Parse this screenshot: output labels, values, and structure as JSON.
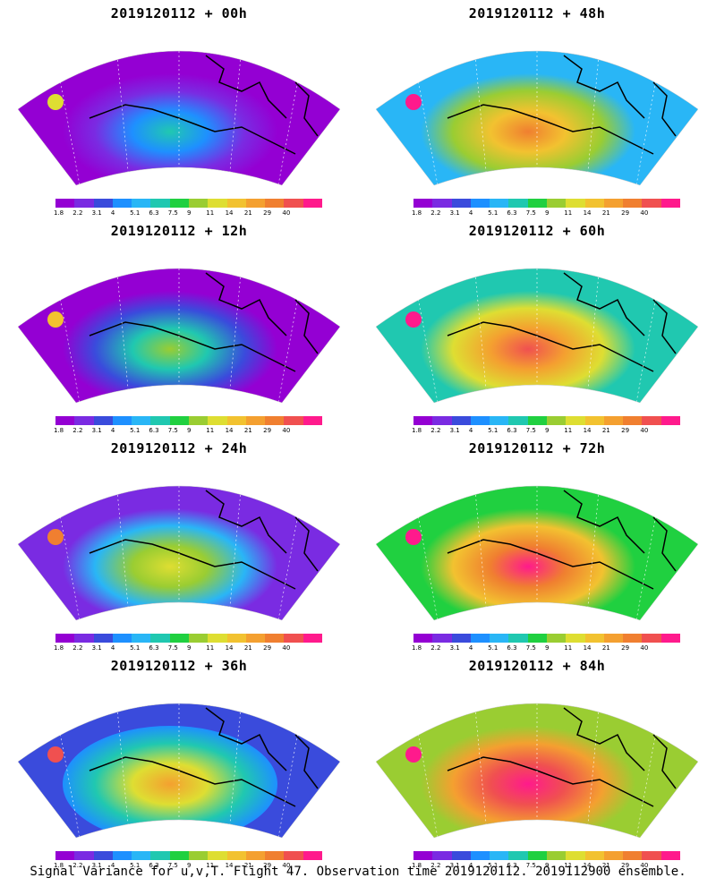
{
  "panels": [
    {
      "title": "2019120112 + 00h",
      "intensity": 0.15
    },
    {
      "title": "2019120112 + 48h",
      "intensity": 0.62
    },
    {
      "title": "2019120112 + 12h",
      "intensity": 0.28
    },
    {
      "title": "2019120112 + 60h",
      "intensity": 0.7
    },
    {
      "title": "2019120112 + 24h",
      "intensity": 0.4
    },
    {
      "title": "2019120112 + 72h",
      "intensity": 0.78
    },
    {
      "title": "2019120112 + 36h",
      "intensity": 0.5
    },
    {
      "title": "2019120112 + 84h",
      "intensity": 0.86
    }
  ],
  "colorbar": {
    "colors": [
      "#9400d3",
      "#7a2be2",
      "#3a4bdc",
      "#1e90ff",
      "#29b6f6",
      "#20c8b0",
      "#20d040",
      "#9acd32",
      "#dede32",
      "#f2c230",
      "#f4a030",
      "#f07f30",
      "#f05050",
      "#ff1a8c"
    ],
    "labels": [
      "1.8",
      "2.2",
      "3.1",
      "4",
      "5.1",
      "6.3",
      "7.5",
      "9",
      "11",
      "14",
      "21",
      "29",
      "40"
    ]
  },
  "caption": "Signal Variance for u,v,T. Flight 47. Observation time 2019120112. 2019112900 ensemble."
}
